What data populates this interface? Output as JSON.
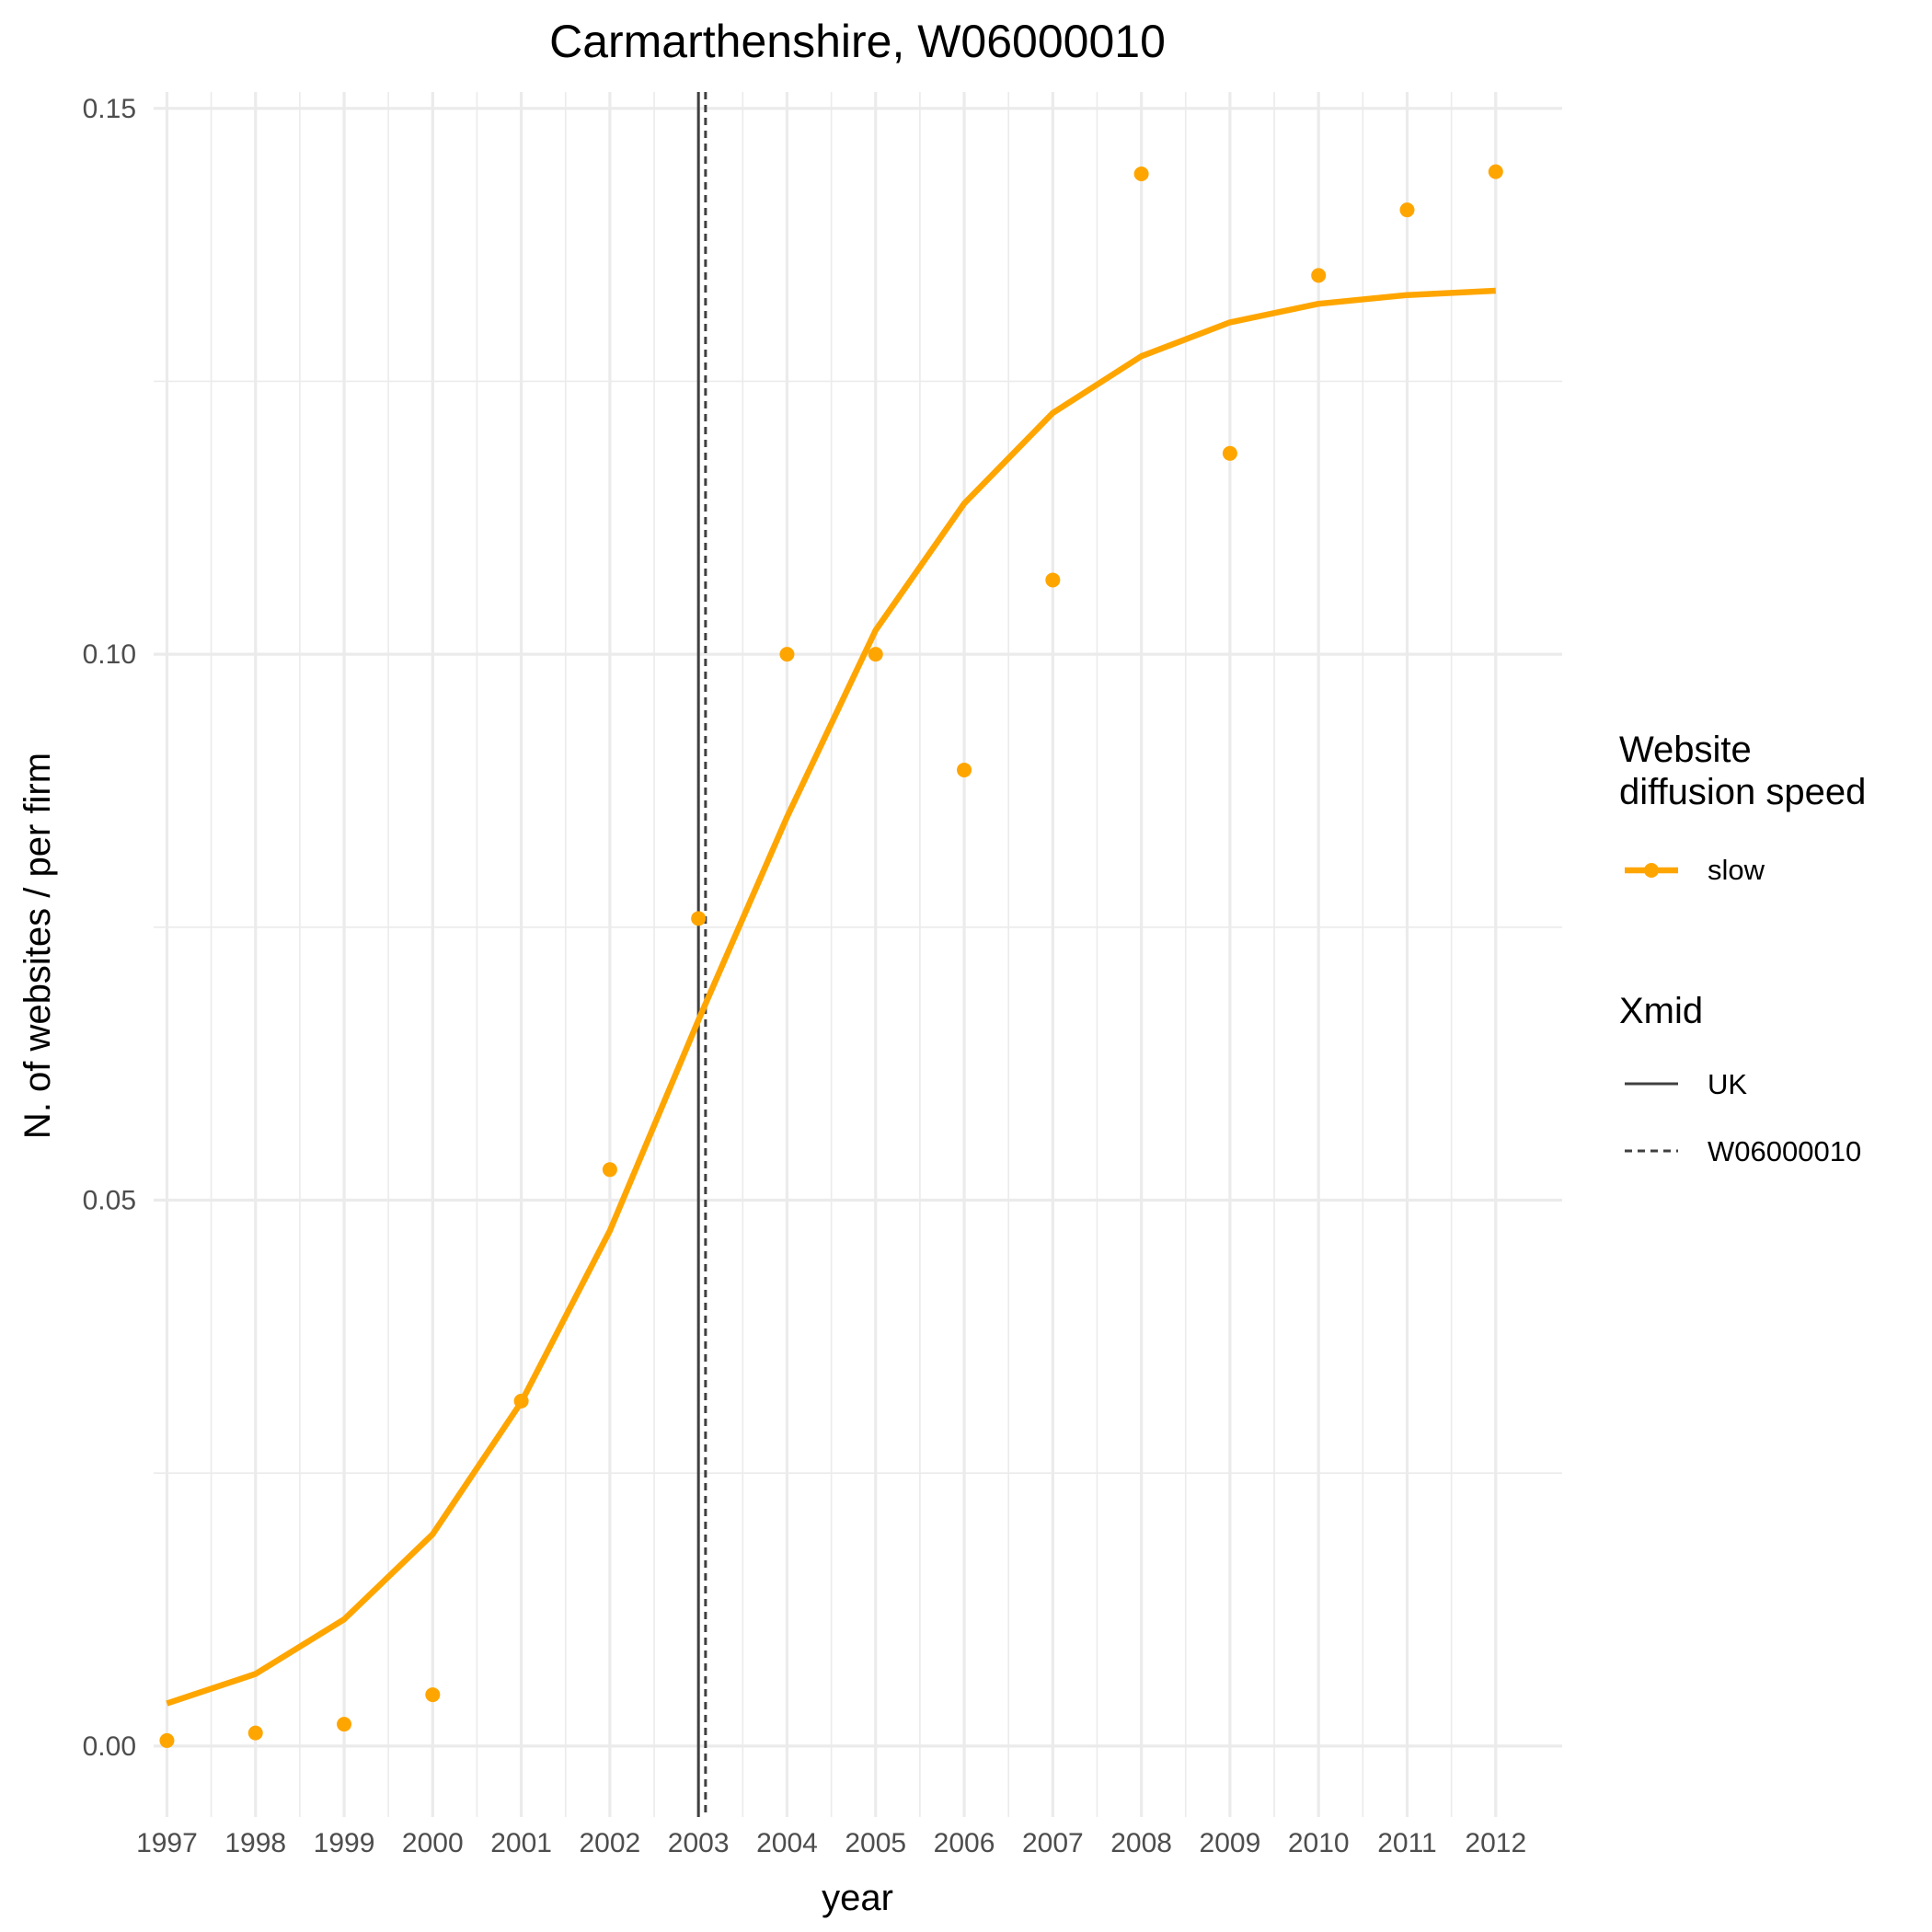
{
  "chart_data": {
    "type": "line",
    "title": "Carmarthenshire, W06000010",
    "xlabel": "year",
    "ylabel": "N. of websites / per firm",
    "x_ticks": [
      "1997",
      "1998",
      "1999",
      "2000",
      "2001",
      "2002",
      "2003",
      "2004",
      "2005",
      "2006",
      "2007",
      "2008",
      "2009",
      "2010",
      "2011",
      "2012"
    ],
    "y_ticks": [
      "0.00",
      "0.05",
      "0.10",
      "0.15"
    ],
    "xlim": [
      1996.85,
      2012.75
    ],
    "ylim": [
      -0.0065,
      0.1515
    ],
    "grid": true,
    "legend_position": "right",
    "series": [
      {
        "name": "slow",
        "kind": "points",
        "color": "#FFA500",
        "x": [
          1997,
          1998,
          1999,
          2000,
          2001,
          2002,
          2003,
          2004,
          2005,
          2006,
          2007,
          2008,
          2009,
          2010,
          2011,
          2012
        ],
        "y": [
          0.0005,
          0.0012,
          0.002,
          0.0047,
          0.0316,
          0.0528,
          0.0758,
          0.1,
          0.1,
          0.0894,
          0.1068,
          0.144,
          0.1184,
          0.1347,
          0.1407,
          0.1442
        ]
      },
      {
        "name": "slow",
        "kind": "line",
        "color": "#FFA500",
        "x": [
          1997,
          1998,
          1999,
          2000,
          2001,
          2002,
          2003,
          2004,
          2005,
          2006,
          2007,
          2008,
          2009,
          2010,
          2011,
          2012
        ],
        "y": [
          0.0039,
          0.0066,
          0.0116,
          0.0194,
          0.0315,
          0.0472,
          0.0665,
          0.0851,
          0.1022,
          0.1138,
          0.1221,
          0.1273,
          0.1304,
          0.1321,
          0.1329,
          0.1333
        ]
      }
    ],
    "reference_lines": [
      {
        "name": "UK",
        "x": 2003.0,
        "style": "solid",
        "color": "#404040"
      },
      {
        "name": "W06000010",
        "x": 2003.08,
        "style": "dashed",
        "color": "#404040"
      }
    ],
    "legend": {
      "groups": [
        {
          "title_lines": [
            "Website",
            "diffusion speed"
          ],
          "entries": [
            {
              "label": "slow",
              "style": "line-point",
              "color": "#FFA500"
            }
          ]
        },
        {
          "title_lines": [
            "Xmid"
          ],
          "entries": [
            {
              "label": "UK",
              "style": "solid",
              "color": "#404040"
            },
            {
              "label": "W06000010",
              "style": "dashed",
              "color": "#404040"
            }
          ]
        }
      ]
    }
  }
}
